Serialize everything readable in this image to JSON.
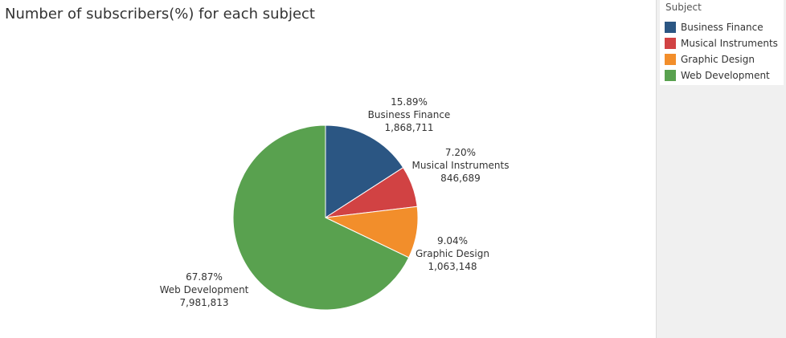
{
  "chart_data": {
    "type": "pie",
    "title": "Number of subscribers(%) for each subject",
    "legend_title": "Subject",
    "legend_position": "top-right",
    "slices": [
      {
        "name": "Business Finance",
        "percent": "15.89%",
        "value_label": "1,868,711",
        "value": 1868711,
        "color": "#2b5683"
      },
      {
        "name": "Musical Instruments",
        "percent": "7.20%",
        "value_label": "846,689",
        "value": 846689,
        "color": "#d14243"
      },
      {
        "name": "Graphic Design",
        "percent": "9.04%",
        "value_label": "1,063,148",
        "value": 1063148,
        "color": "#f28e2b"
      },
      {
        "name": "Web Development",
        "percent": "67.87%",
        "value_label": "7,981,813",
        "value": 7981813,
        "color": "#59a14f"
      }
    ]
  }
}
